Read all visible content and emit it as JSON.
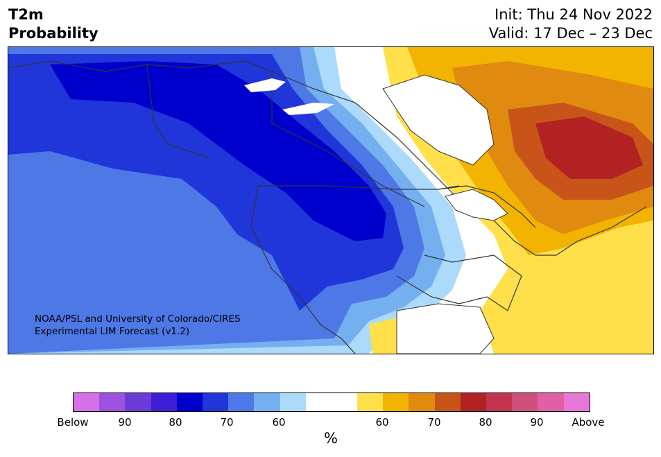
{
  "header": {
    "title_line1": "T2m",
    "title_line2": "Probability",
    "init": "Init: Thu 24 Nov 2022",
    "valid": "Valid: 17 Dec – 23 Dec"
  },
  "map": {
    "credit_line1": "NOAA/PSL and University of Colorado/CIRES",
    "credit_line2": "Experimental LIM Forecast (v1.2)"
  },
  "colorbar": {
    "unit_label": "%",
    "colors": [
      "#d670e8",
      "#9b52e0",
      "#6a3bd6",
      "#3d1ed4",
      "#0000cc",
      "#2036d9",
      "#4d78e6",
      "#74aff0",
      "#acdafa",
      "#ffffff",
      "#ffffff",
      "#ffe04a",
      "#f2b400",
      "#e08a10",
      "#c8541a",
      "#b22222",
      "#c23450",
      "#d0507a",
      "#e060a8",
      "#e878d8"
    ],
    "tick_labels": [
      "Below",
      "90",
      "80",
      "70",
      "60",
      "60",
      "70",
      "80",
      "90",
      "Above"
    ]
  }
}
